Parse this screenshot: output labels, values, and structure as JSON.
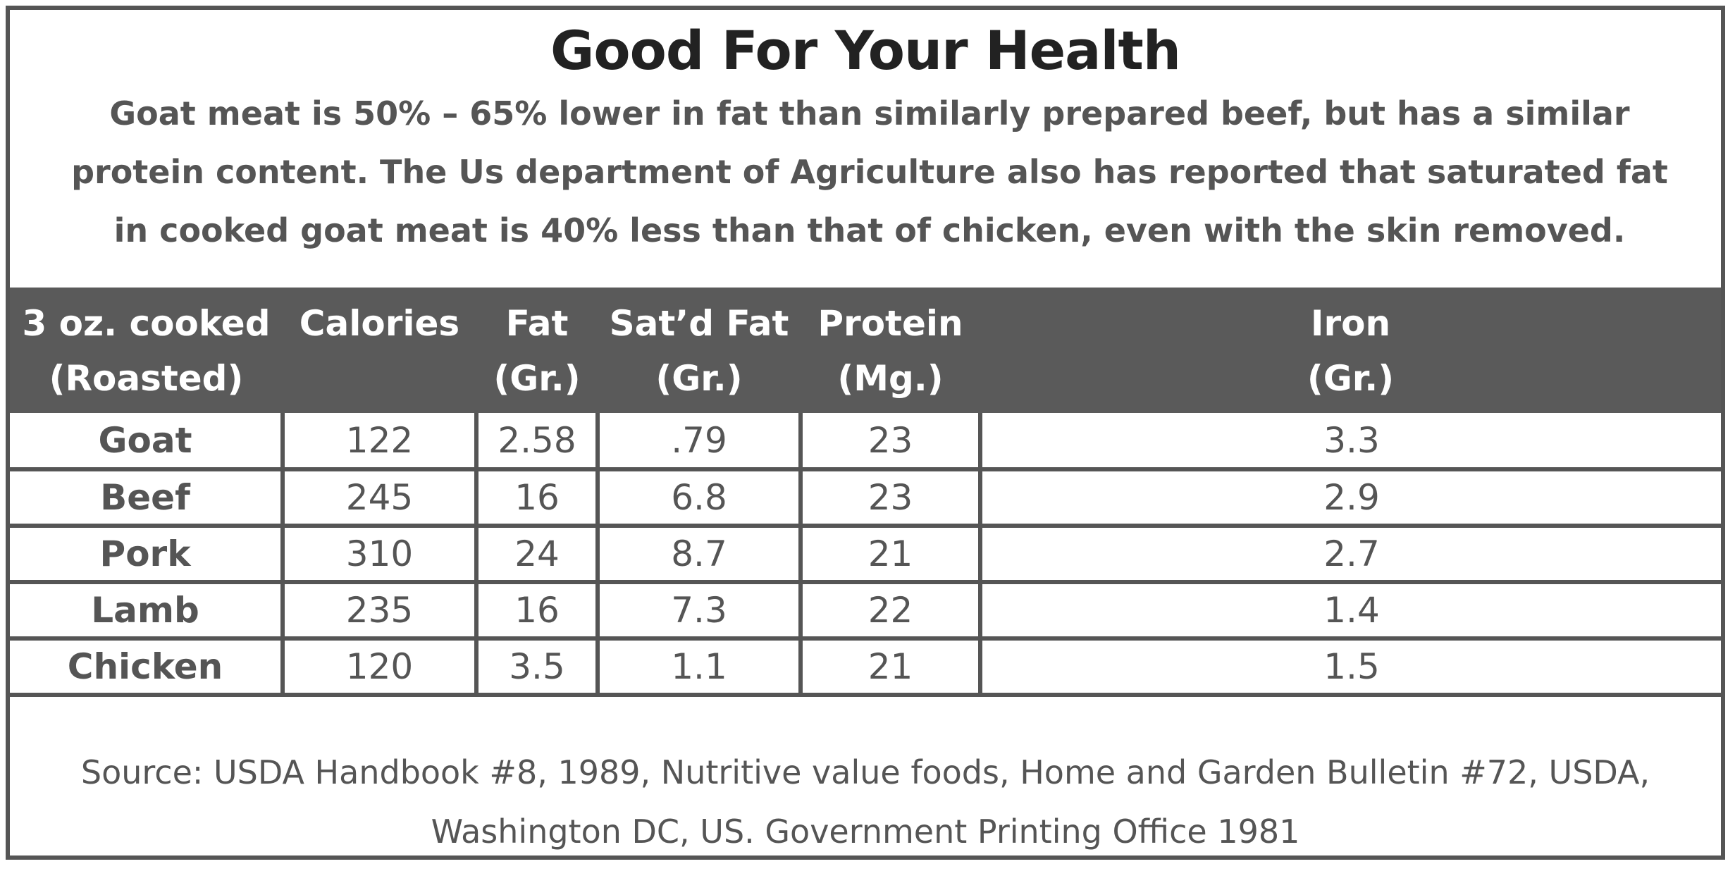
{
  "title": "Good For Your Health",
  "intro_lines": [
    "Goat meat is 50% – 65% lower in fat than similarly prepared beef, but has a similar",
    "protein content. The Us department of Agriculture also has reported that saturated fat",
    "in cooked goat meat is 40% less than that of chicken, even with the skin removed."
  ],
  "headers": [
    {
      "line1": "3 oz. cooked",
      "line2": "(Roasted)"
    },
    {
      "line1": "Calories",
      "line2": ""
    },
    {
      "line1": "Fat",
      "line2": "(Gr.)"
    },
    {
      "line1": "Sat’d Fat",
      "line2": "(Gr.)"
    },
    {
      "line1": "Protein",
      "line2": "(Mg.)"
    },
    {
      "line1": "Iron",
      "line2": "(Gr.)"
    }
  ],
  "source_lines": [
    "Source: USDA Handbook #8, 1989, Nutritive value foods, Home and Garden Bulletin #72, USDA,",
    "Washington DC, US. Government Printing Office 1981"
  ],
  "colors": {
    "header_bg": "#5a5a5a",
    "border": "#555555",
    "text": "#555555",
    "title": "#222222"
  },
  "chart_data": {
    "type": "table",
    "title": "Good For Your Health",
    "columns": [
      "3 oz. cooked (Roasted)",
      "Calories",
      "Fat (Gr.)",
      "Sat’d Fat (Gr.)",
      "Protein (Mg.)",
      "Iron (Gr.)"
    ],
    "rows": [
      [
        "Goat",
        "122",
        "2.58",
        ".79",
        "23",
        "3.3"
      ],
      [
        "Beef",
        "245",
        "16",
        "6.8",
        "23",
        "2.9"
      ],
      [
        "Pork",
        "310",
        "24",
        "8.7",
        "21",
        "2.7"
      ],
      [
        "Lamb",
        "235",
        "16",
        "7.3",
        "22",
        "1.4"
      ],
      [
        "Chicken",
        "120",
        "3.5",
        "1.1",
        "21",
        "1.5"
      ]
    ]
  }
}
